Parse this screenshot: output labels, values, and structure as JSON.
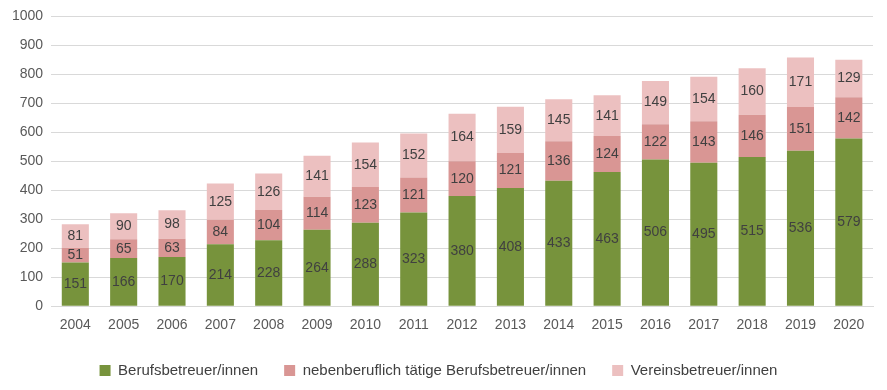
{
  "chart_data": {
    "type": "bar",
    "stacked": true,
    "data_labels": true,
    "grid": true,
    "legend": "bottom",
    "categories": [
      "2004",
      "2005",
      "2006",
      "2007",
      "2008",
      "2009",
      "2010",
      "2011",
      "2012",
      "2013",
      "2014",
      "2015",
      "2016",
      "2017",
      "2018",
      "2019",
      "2020"
    ],
    "series": [
      {
        "name": "Berufsbetreuer/innen",
        "color": "#77933c",
        "values": [
          151,
          166,
          170,
          214,
          228,
          264,
          288,
          323,
          380,
          408,
          433,
          463,
          506,
          495,
          515,
          536,
          579
        ]
      },
      {
        "name": "nebenberuflich tätige Berufsbetreuer/innen",
        "color": "#d99694",
        "values": [
          51,
          65,
          63,
          84,
          104,
          114,
          123,
          121,
          120,
          121,
          136,
          124,
          122,
          143,
          146,
          151,
          142
        ]
      },
      {
        "name": "Vereinsbetreuer/innen",
        "color": "#ecc0c0",
        "values": [
          81,
          90,
          98,
          125,
          126,
          141,
          154,
          152,
          164,
          159,
          145,
          141,
          149,
          154,
          160,
          171,
          129
        ]
      }
    ],
    "ylim": [
      0,
      1000
    ],
    "yticks": [
      0,
      100,
      200,
      300,
      400,
      500,
      600,
      700,
      800,
      900,
      1000
    ]
  }
}
